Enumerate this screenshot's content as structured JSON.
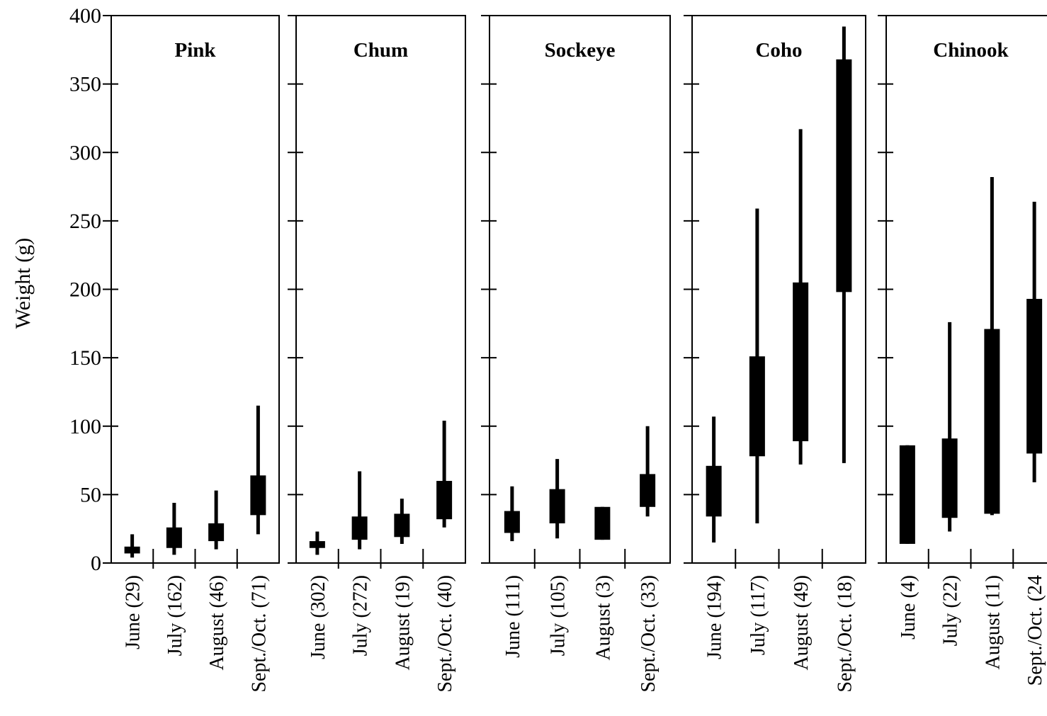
{
  "chart_data": {
    "type": "box",
    "ylabel": "Weight (g)",
    "ylim": [
      0,
      400
    ],
    "yticks": [
      "0",
      "50",
      "100",
      "150",
      "200",
      "250",
      "300",
      "350",
      "400"
    ],
    "panels": [
      {
        "title": "Pink",
        "categories": [
          "June (29)",
          "July (162)",
          "August (46)",
          "Sept./Oct. (71)"
        ],
        "boxes": [
          {
            "whisker_low": 4,
            "q1": 7,
            "q3": 12,
            "whisker_high": 21
          },
          {
            "whisker_low": 6,
            "q1": 11,
            "q3": 26,
            "whisker_high": 44
          },
          {
            "whisker_low": 10,
            "q1": 16,
            "q3": 29,
            "whisker_high": 53
          },
          {
            "whisker_low": 21,
            "q1": 35,
            "q3": 64,
            "whisker_high": 115
          }
        ]
      },
      {
        "title": "Chum",
        "categories": [
          "June (302)",
          "July (272)",
          "August (19)",
          "Sept./Oct. (40)"
        ],
        "boxes": [
          {
            "whisker_low": 6,
            "q1": 11,
            "q3": 16,
            "whisker_high": 23
          },
          {
            "whisker_low": 10,
            "q1": 17,
            "q3": 34,
            "whisker_high": 67
          },
          {
            "whisker_low": 14,
            "q1": 19,
            "q3": 36,
            "whisker_high": 47
          },
          {
            "whisker_low": 26,
            "q1": 32,
            "q3": 60,
            "whisker_high": 104
          }
        ]
      },
      {
        "title": "Sockeye",
        "categories": [
          "June (111)",
          "July (105)",
          "August (3)",
          "Sept./Oct. (33)"
        ],
        "boxes": [
          {
            "whisker_low": 16,
            "q1": 22,
            "q3": 38,
            "whisker_high": 56
          },
          {
            "whisker_low": 18,
            "q1": 29,
            "q3": 54,
            "whisker_high": 76
          },
          {
            "whisker_low": 17,
            "q1": 17,
            "q3": 41,
            "whisker_high": 41
          },
          {
            "whisker_low": 34,
            "q1": 41,
            "q3": 65,
            "whisker_high": 100
          }
        ]
      },
      {
        "title": "Coho",
        "categories": [
          "June (194)",
          "July (117)",
          "August (49)",
          "Sept./Oct. (18)"
        ],
        "boxes": [
          {
            "whisker_low": 15,
            "q1": 34,
            "q3": 71,
            "whisker_high": 107
          },
          {
            "whisker_low": 29,
            "q1": 78,
            "q3": 151,
            "whisker_high": 259
          },
          {
            "whisker_low": 72,
            "q1": 89,
            "q3": 205,
            "whisker_high": 317
          },
          {
            "whisker_low": 73,
            "q1": 198,
            "q3": 368,
            "whisker_high": 392
          }
        ]
      },
      {
        "title": "Chinook",
        "categories": [
          "June (4)",
          "July (22)",
          "August (11)",
          "Sept./Oct. (24"
        ],
        "boxes": [
          {
            "whisker_low": 14,
            "q1": 14,
            "q3": 86,
            "whisker_high": 86
          },
          {
            "whisker_low": 23,
            "q1": 33,
            "q3": 91,
            "whisker_high": 176
          },
          {
            "whisker_low": 35,
            "q1": 36,
            "q3": 171,
            "whisker_high": 282
          },
          {
            "whisker_low": 59,
            "q1": 80,
            "q3": 193,
            "whisker_high": 264
          }
        ]
      }
    ]
  }
}
